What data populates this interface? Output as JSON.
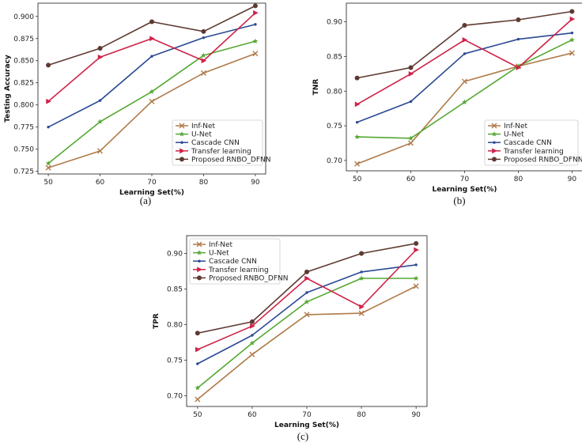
{
  "colors": {
    "Inf-Net": "#b07a4a",
    "U-Net": "#55a832",
    "Cascade CNN": "#2a4a94",
    "Transfer learning": "#cf2348",
    "Proposed RNBO_DFNN": "#5e3a32"
  },
  "markers": {
    "Inf-Net": "x",
    "U-Net": "star",
    "Cascade CNN": "dot",
    "Transfer learning": "triangle",
    "Proposed RNBO_DFNN": "circle"
  },
  "chart_data": [
    {
      "id": "a",
      "caption": "(a)",
      "type": "line",
      "xlabel": "Learning Set(%)",
      "ylabel": "Testing Accuracy",
      "x": [
        50,
        60,
        70,
        80,
        90
      ],
      "xticks": [
        "50",
        "60",
        "70",
        "80",
        "90"
      ],
      "ylim": [
        0.722,
        0.915
      ],
      "yticks": [
        "0.725",
        "0.750",
        "0.775",
        "0.800",
        "0.825",
        "0.850",
        "0.875",
        "0.900"
      ],
      "ytick_values": [
        0.725,
        0.75,
        0.775,
        0.8,
        0.825,
        0.85,
        0.875,
        0.9
      ],
      "xlim": [
        48,
        92
      ],
      "legend_position": "lower-right",
      "series": [
        {
          "name": "Inf-Net",
          "values": [
            0.729,
            0.748,
            0.804,
            0.836,
            0.858
          ]
        },
        {
          "name": "U-Net",
          "values": [
            0.734,
            0.781,
            0.815,
            0.856,
            0.872
          ]
        },
        {
          "name": "Cascade CNN",
          "values": [
            0.775,
            0.805,
            0.855,
            0.876,
            0.891
          ]
        },
        {
          "name": "Transfer learning",
          "values": [
            0.804,
            0.854,
            0.875,
            0.85,
            0.904
          ]
        },
        {
          "name": "Proposed RNBO_DFNN",
          "values": [
            0.845,
            0.864,
            0.894,
            0.883,
            0.912
          ]
        }
      ]
    },
    {
      "id": "b",
      "caption": "(b)",
      "type": "line",
      "xlabel": "Learning Set(%)",
      "ylabel": "TNR",
      "x": [
        50,
        60,
        70,
        80,
        90
      ],
      "xticks": [
        "50",
        "60",
        "70",
        "80",
        "90"
      ],
      "ylim": [
        0.685,
        0.927
      ],
      "yticks": [
        "0.70",
        "0.75",
        "0.80",
        "0.85",
        "0.90"
      ],
      "ytick_values": [
        0.7,
        0.75,
        0.8,
        0.85,
        0.9
      ],
      "xlim": [
        48,
        92
      ],
      "legend_position": "lower-right",
      "series": [
        {
          "name": "Inf-Net",
          "values": [
            0.695,
            0.725,
            0.814,
            0.836,
            0.855
          ]
        },
        {
          "name": "U-Net",
          "values": [
            0.734,
            0.732,
            0.784,
            0.836,
            0.874
          ]
        },
        {
          "name": "Cascade CNN",
          "values": [
            0.755,
            0.785,
            0.854,
            0.875,
            0.884
          ]
        },
        {
          "name": "Transfer learning",
          "values": [
            0.781,
            0.825,
            0.874,
            0.834,
            0.904
          ]
        },
        {
          "name": "Proposed RNBO_DFNN",
          "values": [
            0.819,
            0.834,
            0.895,
            0.903,
            0.915
          ]
        }
      ]
    },
    {
      "id": "c",
      "caption": "(c)",
      "type": "line",
      "xlabel": "Learning Set(%)",
      "ylabel": "TPR",
      "x": [
        50,
        60,
        70,
        80,
        90
      ],
      "xticks": [
        "50",
        "60",
        "70",
        "80",
        "90"
      ],
      "ylim": [
        0.685,
        0.925
      ],
      "yticks": [
        "0.70",
        "0.75",
        "0.80",
        "0.85",
        "0.90"
      ],
      "ytick_values": [
        0.7,
        0.75,
        0.8,
        0.85,
        0.9
      ],
      "xlim": [
        48,
        92
      ],
      "legend_position": "upper-left",
      "series": [
        {
          "name": "Inf-Net",
          "values": [
            0.695,
            0.758,
            0.814,
            0.816,
            0.854
          ]
        },
        {
          "name": "U-Net",
          "values": [
            0.711,
            0.774,
            0.832,
            0.865,
            0.865
          ]
        },
        {
          "name": "Cascade CNN",
          "values": [
            0.745,
            0.785,
            0.845,
            0.874,
            0.884
          ]
        },
        {
          "name": "Transfer learning",
          "values": [
            0.765,
            0.798,
            0.865,
            0.825,
            0.905
          ]
        },
        {
          "name": "Proposed RNBO_DFNN",
          "values": [
            0.788,
            0.804,
            0.874,
            0.9,
            0.914
          ]
        }
      ]
    }
  ]
}
